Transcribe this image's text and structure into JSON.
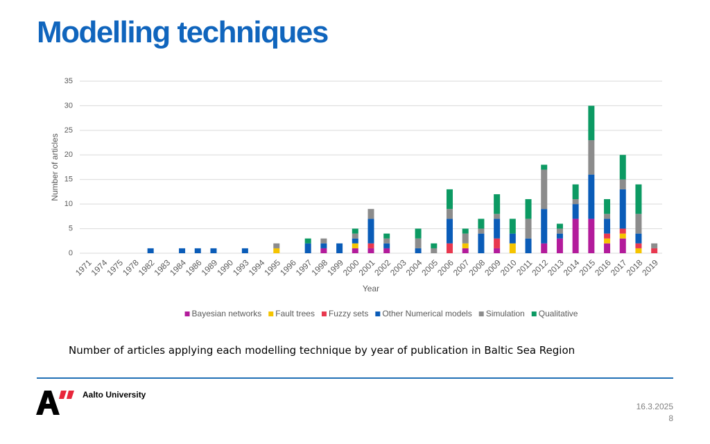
{
  "header": {
    "title": "Modelling techniques"
  },
  "chart_data": {
    "type": "stacked_bar",
    "x_label": "Year",
    "y_label": "Number of articles",
    "categories": [
      "1971",
      "1974",
      "1975",
      "1978",
      "1982",
      "1983",
      "1984",
      "1986",
      "1989",
      "1990",
      "1993",
      "1994",
      "1995",
      "1996",
      "1997",
      "1998",
      "1999",
      "2000",
      "2001",
      "2002",
      "2003",
      "2004",
      "2005",
      "2006",
      "2007",
      "2008",
      "2009",
      "2010",
      "2011",
      "2012",
      "2013",
      "2014",
      "2015",
      "2016",
      "2017",
      "2018",
      "2019"
    ],
    "series": [
      {
        "name": "Bayesian networks",
        "color": "#b31b9b",
        "values": [
          0,
          0,
          0,
          0,
          0,
          0,
          0,
          0,
          0,
          0,
          0,
          0,
          0,
          0,
          0,
          1,
          0,
          1,
          1,
          1,
          0,
          0,
          0,
          0,
          1,
          0,
          1,
          0,
          0,
          2,
          3,
          7,
          7,
          2,
          3,
          0,
          0
        ]
      },
      {
        "name": "Fault trees",
        "color": "#f5c400",
        "values": [
          0,
          0,
          0,
          0,
          0,
          0,
          0,
          0,
          0,
          0,
          0,
          0,
          1,
          0,
          0,
          0,
          0,
          1,
          0,
          0,
          0,
          0,
          0,
          0,
          1,
          0,
          0,
          2,
          0,
          0,
          0,
          0,
          0,
          1,
          1,
          1,
          0
        ]
      },
      {
        "name": "Fuzzy sets",
        "color": "#e8384f",
        "values": [
          0,
          0,
          0,
          0,
          0,
          0,
          0,
          0,
          0,
          0,
          0,
          0,
          0,
          0,
          0,
          0,
          0,
          0,
          1,
          0,
          0,
          0,
          0,
          2,
          0,
          0,
          2,
          0,
          0,
          0,
          0,
          0,
          0,
          1,
          1,
          1,
          1
        ]
      },
      {
        "name": "Other Numerical models",
        "color": "#0a5cb8",
        "values": [
          0,
          0,
          0,
          0,
          1,
          0,
          1,
          1,
          1,
          0,
          1,
          0,
          0,
          0,
          2,
          1,
          2,
          1,
          5,
          1,
          0,
          1,
          0,
          5,
          0,
          4,
          4,
          2,
          3,
          7,
          1,
          3,
          9,
          3,
          8,
          2,
          0
        ]
      },
      {
        "name": "Simulation",
        "color": "#8c8c8c",
        "values": [
          0,
          0,
          0,
          0,
          0,
          0,
          0,
          0,
          0,
          0,
          0,
          0,
          1,
          0,
          0,
          1,
          0,
          1,
          2,
          1,
          0,
          2,
          1,
          2,
          2,
          1,
          1,
          0,
          4,
          8,
          1,
          1,
          7,
          1,
          2,
          4,
          1
        ]
      },
      {
        "name": "Qualitative",
        "color": "#0c9a63",
        "values": [
          0,
          0,
          0,
          0,
          0,
          0,
          0,
          0,
          0,
          0,
          0,
          0,
          0,
          0,
          1,
          0,
          0,
          1,
          0,
          1,
          0,
          2,
          1,
          4,
          1,
          2,
          4,
          3,
          4,
          1,
          1,
          3,
          7,
          3,
          5,
          6,
          0
        ]
      }
    ],
    "ylim": [
      0,
      35
    ],
    "yticks": [
      0,
      5,
      10,
      15,
      20,
      25,
      30,
      35
    ],
    "grid": true,
    "legend": "bottom"
  },
  "caption": "Number of articles applying each modelling technique by year of publication in Baltic Sea Region",
  "footer": {
    "organization": "Aalto University",
    "date": "16.3.2025",
    "page": "8"
  }
}
